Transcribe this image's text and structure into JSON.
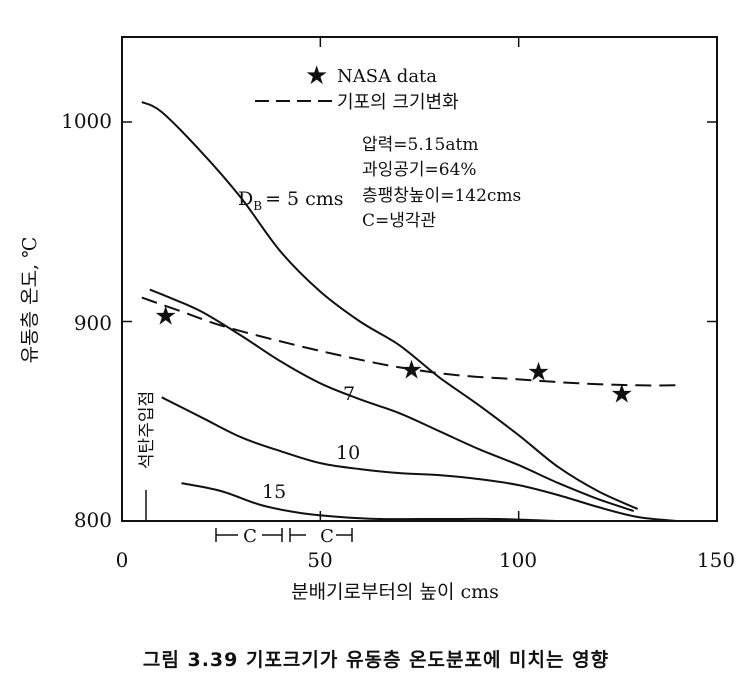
{
  "chart_data": {
    "type": "line",
    "xlabel": "분배기로부터의 높이 cms",
    "ylabel": "유동층 온도, ℃",
    "xlim": [
      0,
      150
    ],
    "ylim": [
      800,
      1045
    ],
    "xticks": [
      "0",
      "50",
      "100",
      "150"
    ],
    "yticks": [
      "800",
      "900",
      "1000"
    ],
    "grid": false,
    "series": [
      {
        "name": "D_B = 5 cms",
        "x": [
          5,
          10,
          20,
          30,
          40,
          50,
          60,
          70,
          80,
          90,
          100,
          110,
          120,
          130
        ],
        "y": [
          1010,
          1005,
          985,
          962,
          935,
          915,
          900,
          888,
          872,
          858,
          843,
          827,
          815,
          806
        ]
      },
      {
        "name": "7",
        "x": [
          7,
          12,
          20,
          30,
          40,
          50,
          60,
          70,
          80,
          90,
          100,
          110,
          120,
          129
        ],
        "y": [
          916,
          912,
          905,
          893,
          880,
          869,
          861,
          854,
          845,
          836,
          828,
          819,
          811,
          805
        ]
      },
      {
        "name": "10",
        "x": [
          10,
          20,
          30,
          40,
          50,
          60,
          70,
          80,
          90,
          100,
          110,
          120,
          130,
          140
        ],
        "y": [
          862,
          852,
          842,
          835,
          829,
          826,
          824,
          823,
          821,
          818,
          813,
          807,
          802,
          800
        ]
      },
      {
        "name": "15",
        "x": [
          15,
          25,
          35,
          45,
          55,
          65,
          75,
          85,
          95,
          110
        ],
        "y": [
          819,
          815,
          808,
          804,
          802,
          801,
          801,
          801,
          801,
          800
        ]
      },
      {
        "name": "기포의 크기변화",
        "style": "dashed",
        "x": [
          5,
          15,
          25,
          40,
          55,
          70,
          85,
          100,
          115,
          130,
          140
        ],
        "y": [
          912,
          905,
          898,
          890,
          883,
          877,
          873,
          871,
          869,
          868,
          868
        ]
      }
    ],
    "nasa_data": {
      "name": "NASA data",
      "x": [
        11,
        73,
        105,
        126
      ],
      "y": [
        903,
        876,
        875,
        864
      ]
    },
    "series_labels": {
      "s5": "D",
      "s5_sub": "B",
      "s5_rest": "= 5 cms",
      "s7": "7",
      "s10": "10",
      "s15": "15"
    },
    "legend": {
      "nasa": "NASA data",
      "dashed": "기포의 크기변화"
    },
    "conditions": [
      "압력=5.15atm",
      "과잉공기=64%",
      "층팽창높이=142cms",
      "C=냉각관"
    ],
    "annotations": {
      "injection_point": "석탄주입점",
      "cooling_tube_1": "C",
      "cooling_tube_2": "C"
    }
  },
  "caption": "그림 3.39  기포크기가 유동층 온도분포에 미치는 영향"
}
